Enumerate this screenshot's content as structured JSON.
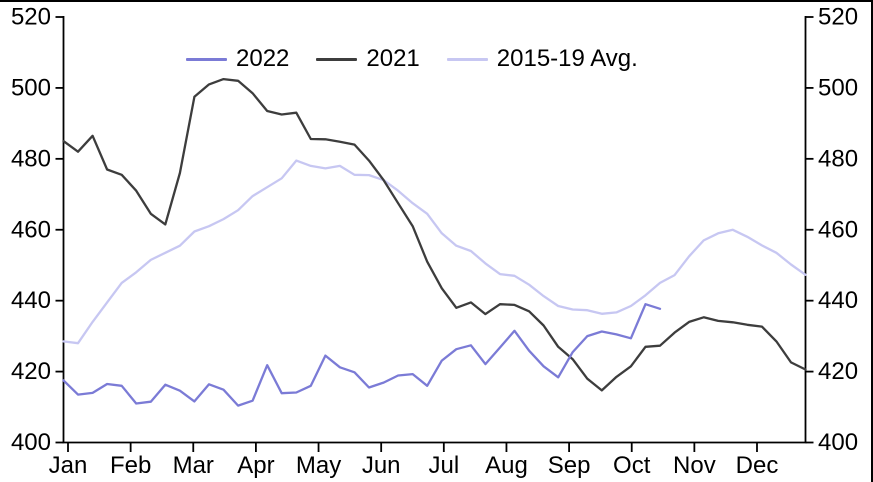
{
  "chart_data": {
    "type": "line",
    "title": "",
    "x_resolution": "weekly",
    "x_tick_labels": [
      "Jan",
      "Feb",
      "Mar",
      "Apr",
      "May",
      "Jun",
      "Jul",
      "Aug",
      "Sep",
      "Oct",
      "Nov",
      "Dec"
    ],
    "y_tick_labels_left": [
      "520",
      "500",
      "480",
      "460",
      "440",
      "420",
      "400"
    ],
    "y_tick_labels_right": [
      "520",
      "500",
      "480",
      "460",
      "440",
      "420",
      "400"
    ],
    "y_tick_values": [
      520,
      500,
      480,
      460,
      440,
      420,
      400
    ],
    "ylim": [
      400,
      520
    ],
    "grid": false,
    "legend_position": "top-center",
    "axis_color": "#000000",
    "series": [
      {
        "name": "2022",
        "color": "#7b7bd6",
        "values": [
          417.5,
          413.5,
          414,
          416.5,
          416,
          411,
          411.5,
          416.3,
          414.6,
          411.6,
          416.4,
          414.9,
          410.4,
          411.8,
          421.8,
          413.9,
          414.1,
          416,
          424.5,
          421.2,
          419.8,
          415.5,
          416.9,
          418.9,
          419.3,
          416,
          423.1,
          426.3,
          427.4,
          422.1,
          426.8,
          431.5,
          425.9,
          421.5,
          418.4,
          425.5,
          430,
          431.3,
          430.5,
          429.4,
          439,
          437.7
        ]
      },
      {
        "name": "2021",
        "color": "#3d3d3d",
        "values": [
          485,
          482,
          486.5,
          477,
          475.5,
          471,
          464.5,
          461.5,
          476,
          497.5,
          501,
          502.5,
          502,
          498.5,
          493.5,
          492.5,
          493,
          485.6,
          485.5,
          484.8,
          484,
          479.5,
          474,
          467.5,
          461,
          451,
          443.5,
          438,
          439.5,
          436.2,
          439,
          438.8,
          437,
          433,
          427,
          423.5,
          418,
          414.7,
          418.5,
          421.5,
          427,
          427.3,
          431,
          434,
          435.3,
          434.3,
          433.9,
          433.2,
          432.7,
          428.5,
          422.6,
          420.6
        ]
      },
      {
        "name": "2015-19 Avg.",
        "color": "#c7c7f2",
        "values": [
          428.5,
          428,
          434,
          439.5,
          445,
          448,
          451.5,
          453.5,
          455.5,
          459.5,
          461,
          463,
          465.5,
          469.5,
          472,
          474.5,
          479.5,
          478,
          477.3,
          478,
          475.5,
          475.4,
          474,
          471,
          467.5,
          464.5,
          459,
          455.5,
          454,
          450.5,
          447.5,
          447,
          444.5,
          441.3,
          438.5,
          437.5,
          437.3,
          436.3,
          436.7,
          438.5,
          441.5,
          445,
          447.2,
          452.5,
          457,
          459,
          460,
          458,
          455.6,
          453.5,
          450.2,
          447.3
        ]
      }
    ]
  }
}
